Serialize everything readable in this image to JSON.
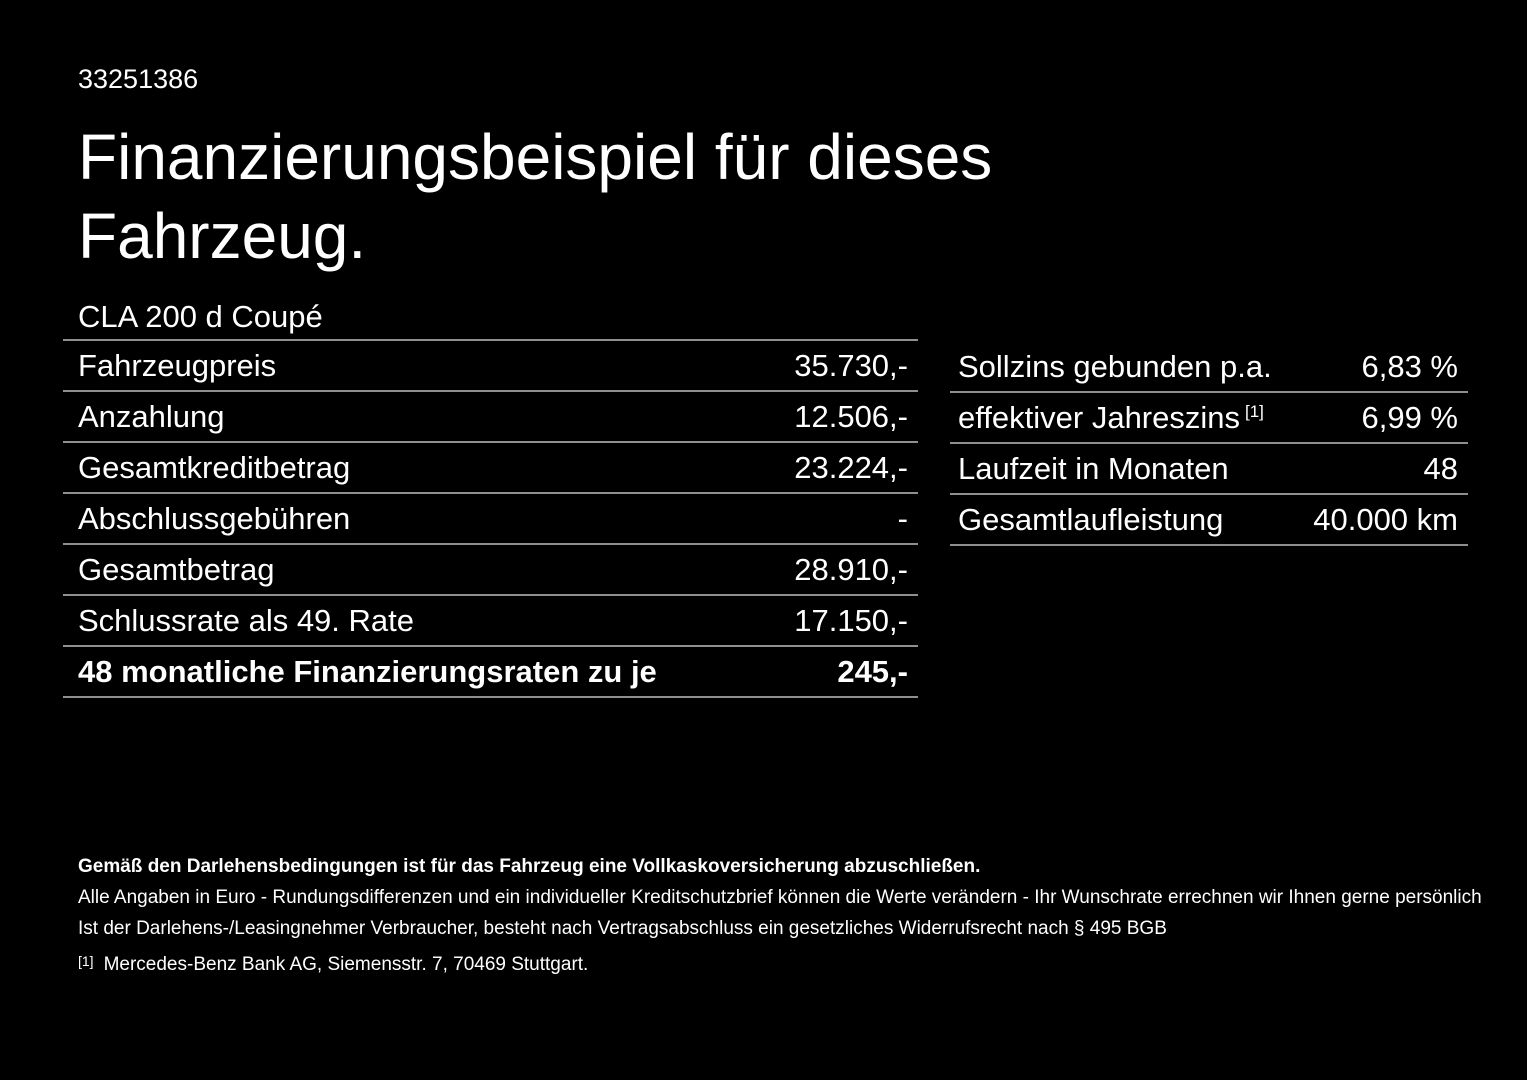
{
  "page": {
    "document_id": "33251386",
    "title_line1": "Finanzierungsbeispiel für dieses",
    "title_line2": "Fahrzeug.",
    "vehicle_model": "CLA 200 d Coupé"
  },
  "colors": {
    "background": "#000000",
    "text": "#ffffff",
    "divider": "#8f8f8f"
  },
  "left_table": {
    "rows": [
      {
        "label": "Fahrzeugpreis",
        "value": "35.730,-"
      },
      {
        "label": "Anzahlung",
        "value": "12.506,-"
      },
      {
        "label": "Gesamtkreditbetrag",
        "value": "23.224,-"
      },
      {
        "label": "Abschlussgebühren",
        "value": "-"
      },
      {
        "label": "Gesamtbetrag",
        "value": "28.910,-"
      },
      {
        "label": "Schlussrate als 49. Rate",
        "value": "17.150,-"
      },
      {
        "label": "48 monatliche Finanzierungsraten zu je",
        "value": "245,-"
      }
    ]
  },
  "right_table": {
    "rows": [
      {
        "label": "Sollzins gebunden p.a.",
        "sup": "",
        "value": "6,83 %"
      },
      {
        "label": "effektiver Jahreszins",
        "sup": "[1]",
        "value": "6,99 %"
      },
      {
        "label": "Laufzeit in Monaten",
        "sup": "",
        "value": "48"
      },
      {
        "label": "Gesamtlaufleistung",
        "sup": "",
        "value": "40.000 km"
      }
    ]
  },
  "fineprint": {
    "bold_line": "Gemäß den Darlehensbedingungen ist für das Fahrzeug eine Vollkaskoversicherung abzuschließen.",
    "line2": "Alle Angaben in Euro - Rundungsdifferenzen und ein individueller Kreditschutzbrief können die Werte verändern - Ihr Wunschrate errechnen wir Ihnen gerne persönlich",
    "line3": "Ist der Darlehens-/Leasingnehmer Verbraucher, besteht nach Vertragsabschluss ein gesetzliches Widerrufsrecht nach § 495 BGB",
    "footnote_marker": "[1]",
    "footnote_text": "Mercedes-Benz Bank AG, Siemensstr. 7, 70469 Stuttgart."
  }
}
